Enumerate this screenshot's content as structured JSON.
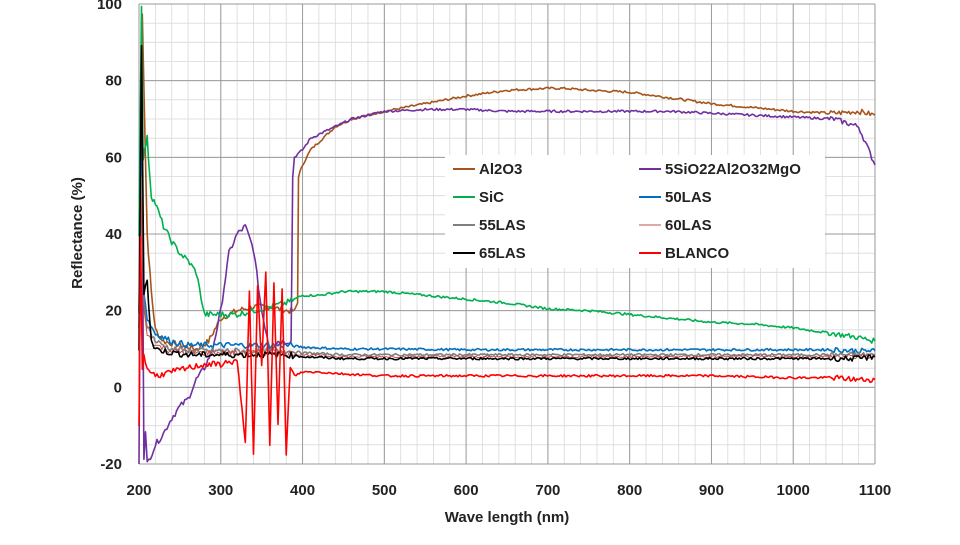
{
  "chart_data": {
    "type": "line",
    "title": "",
    "xlabel": "Wave length (nm)",
    "ylabel": "Reflectance (%)",
    "xlim": [
      200,
      1100
    ],
    "ylim": [
      -20,
      100
    ],
    "x_ticks": [
      "200",
      "300",
      "400",
      "500",
      "600",
      "700",
      "800",
      "900",
      "1000",
      "1100"
    ],
    "y_ticks": [
      "-20",
      "0",
      "20",
      "40",
      "60",
      "80",
      "100"
    ],
    "grid": true,
    "legend_position": "center-right",
    "series": [
      {
        "name": "Al2O3",
        "color": "#a5551c",
        "x": [
          200,
          204,
          210,
          215,
          220,
          230,
          250,
          270,
          285,
          300,
          320,
          340,
          360,
          380,
          390,
          394,
          395,
          400,
          410,
          420,
          440,
          460,
          480,
          500,
          550,
          600,
          650,
          700,
          720,
          750,
          800,
          850,
          900,
          950,
          1000,
          1050,
          1080,
          1100
        ],
        "y": [
          20,
          98,
          40,
          25,
          15,
          12,
          11,
          10,
          12,
          18,
          20,
          21,
          21,
          20,
          20,
          22,
          55,
          58,
          62,
          64,
          68,
          70,
          71,
          72,
          74,
          76,
          77.5,
          78,
          78,
          77.5,
          77,
          75.5,
          74,
          73,
          72,
          71.5,
          72,
          71
        ]
      },
      {
        "name": "5SiO22Al2O32MgO",
        "color": "#7030a0",
        "x": [
          200,
          203,
          206,
          208,
          210,
          220,
          230,
          240,
          250,
          260,
          270,
          280,
          290,
          300,
          310,
          320,
          330,
          340,
          350,
          360,
          370,
          380,
          386,
          388,
          390,
          400,
          410,
          420,
          440,
          460,
          480,
          500,
          550,
          600,
          650,
          700,
          750,
          800,
          850,
          900,
          950,
          1000,
          1050,
          1080,
          1100
        ],
        "y": [
          -20,
          85,
          -18,
          -12,
          -20,
          -15,
          -12,
          -8,
          -5,
          -3,
          2,
          5,
          10,
          20,
          35,
          40,
          42,
          36,
          20,
          10,
          12,
          12,
          12,
          55,
          60,
          62,
          65,
          66,
          68,
          70,
          71,
          72,
          72.5,
          72.5,
          72,
          72,
          72,
          72,
          72,
          71.5,
          71,
          70.5,
          70,
          68,
          58
        ]
      },
      {
        "name": "SiC",
        "color": "#00b050",
        "x": [
          200,
          203,
          205,
          210,
          215,
          220,
          230,
          240,
          250,
          260,
          270,
          280,
          285,
          300,
          320,
          340,
          360,
          380,
          390,
          400,
          420,
          450,
          480,
          500,
          550,
          600,
          650,
          700,
          750,
          800,
          850,
          900,
          950,
          1000,
          1050,
          1080,
          1100
        ],
        "y": [
          40,
          100,
          60,
          65,
          50,
          48,
          42,
          38,
          35,
          33,
          30,
          19,
          19,
          19,
          19,
          20,
          21,
          22,
          23,
          24,
          24,
          25,
          25,
          25,
          24,
          23,
          22,
          20.5,
          20,
          19,
          18,
          17,
          16.5,
          15.5,
          14,
          13,
          12
        ]
      },
      {
        "name": "50LAS",
        "color": "#0070c0",
        "x": [
          200,
          203,
          206,
          210,
          220,
          240,
          260,
          280,
          300,
          320,
          340,
          360,
          380,
          400,
          450,
          500,
          600,
          700,
          800,
          900,
          1000,
          1050,
          1080,
          1100
        ],
        "y": [
          20,
          60,
          25,
          18,
          14,
          12,
          11,
          11,
          11,
          11,
          11,
          11,
          11,
          10.5,
          10,
          10,
          9.8,
          9.8,
          9.8,
          9.8,
          9.8,
          9.8,
          9.5,
          9.5
        ]
      },
      {
        "name": "55LAS",
        "color": "#7f7f7f",
        "x": [
          200,
          203,
          206,
          210,
          220,
          240,
          260,
          280,
          300,
          320,
          340,
          360,
          380,
          400,
          450,
          500,
          600,
          700,
          800,
          900,
          1000,
          1050,
          1080,
          1100
        ],
        "y": [
          15,
          55,
          22,
          16,
          12,
          10,
          9.5,
          9.5,
          9.5,
          9.5,
          9.5,
          9.5,
          9.5,
          9,
          8.5,
          8.5,
          8.5,
          8.5,
          8.5,
          8.5,
          8.5,
          8.5,
          8.5,
          8.5
        ]
      },
      {
        "name": "60LAS",
        "color": "#c0504d",
        "x": [
          200,
          203,
          206,
          210,
          220,
          240,
          260,
          280,
          300,
          320,
          340,
          360,
          380,
          400,
          450,
          500,
          600,
          700,
          800,
          900,
          1000,
          1050,
          1080,
          1100
        ],
        "y": [
          12,
          50,
          20,
          14,
          11,
          9.5,
          9,
          9,
          9,
          9,
          9,
          9,
          9,
          8.5,
          8,
          8,
          8,
          8,
          8,
          8,
          8,
          8,
          8,
          8
        ]
      },
      {
        "name": "65LAS",
        "color": "#000000",
        "x": [
          200,
          203,
          206,
          210,
          215,
          220,
          240,
          260,
          280,
          300,
          320,
          340,
          360,
          380,
          400,
          450,
          500,
          600,
          700,
          800,
          900,
          1000,
          1050,
          1080,
          1100
        ],
        "y": [
          10,
          89,
          25,
          28,
          12,
          10,
          9,
          8.5,
          8.5,
          8.5,
          8.5,
          8.5,
          8.5,
          8.5,
          8,
          7.5,
          7.5,
          7.5,
          7.5,
          7.5,
          7.5,
          7.5,
          7.5,
          7.5,
          8
        ]
      },
      {
        "name": "BLANCO",
        "color": "#ff0000",
        "x": [
          200,
          202,
          204,
          206,
          210,
          220,
          240,
          260,
          280,
          300,
          320,
          330,
          335,
          340,
          345,
          350,
          355,
          360,
          365,
          370,
          375,
          380,
          385,
          390,
          400,
          420,
          450,
          500,
          600,
          700,
          800,
          900,
          1000,
          1050,
          1080,
          1100
        ],
        "y": [
          -10,
          40,
          5,
          8,
          5,
          3,
          4,
          5,
          6,
          6,
          7,
          -15,
          25,
          -18,
          27,
          5,
          30,
          -15,
          28,
          -10,
          25,
          -17,
          5,
          3,
          4,
          4,
          3.5,
          3,
          3,
          3,
          3,
          3,
          2.5,
          2.5,
          2,
          2
        ]
      }
    ]
  }
}
